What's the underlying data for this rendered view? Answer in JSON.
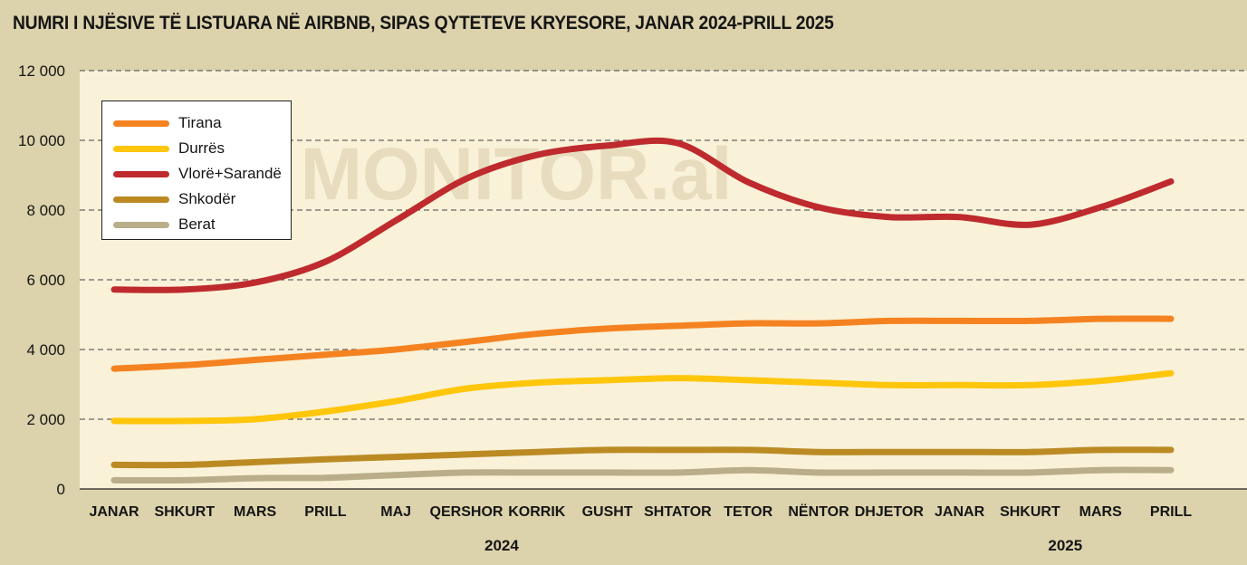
{
  "title": "NUMRI I NJËSIVE TË LISTUARA NË AIRBNB, SIPAS QYTETEVE KRYESORE, JANAR 2024-PRILL 2025",
  "watermark": "MONITOR.al",
  "chart_data": {
    "type": "line",
    "title": "NUMRI I NJËSIVE TË LISTUARA NË AIRBNB, SIPAS QYTETEVE KRYESORE, JANAR 2024-PRILL 2025",
    "xlabel": "",
    "ylabel": "",
    "categories": [
      "JANAR",
      "SHKURT",
      "MARS",
      "PRILL",
      "MAJ",
      "QERSHOR",
      "KORRIK",
      "GUSHT",
      "SHTATOR",
      "TETOR",
      "NËNTOR",
      "DHJETOR",
      "JANAR",
      "SHKURT",
      "MARS",
      "PRILL"
    ],
    "year_labels": [
      {
        "label": "2024",
        "category_index": 5.5
      },
      {
        "label": "2025",
        "category_index": 13.5
      }
    ],
    "ylim": [
      0,
      12000
    ],
    "yticks": [
      0,
      2000,
      4000,
      6000,
      8000,
      10000,
      12000
    ],
    "ytick_labels": [
      "0",
      "2 000",
      "4 000",
      "6 000",
      "8 000",
      "10 000",
      "12 000"
    ],
    "grid": true,
    "legend_position": "top-left",
    "series": [
      {
        "name": "Tirana",
        "color": "#f58220",
        "values": [
          3450,
          3550,
          3700,
          3850,
          4000,
          4220,
          4450,
          4600,
          4680,
          4750,
          4750,
          4820,
          4820,
          4820,
          4880,
          4880
        ]
      },
      {
        "name": "Durrës",
        "color": "#ffc60b",
        "values": [
          1950,
          1950,
          2000,
          2220,
          2520,
          2880,
          3050,
          3120,
          3180,
          3120,
          3050,
          2980,
          2980,
          2980,
          3100,
          3320
        ]
      },
      {
        "name": "Vlorë+Sarandë",
        "color": "#be2a2d",
        "values": [
          5720,
          5720,
          5920,
          6520,
          7700,
          8900,
          9580,
          9850,
          9920,
          8800,
          8080,
          7800,
          7800,
          7580,
          8080,
          8820
        ]
      },
      {
        "name": "Shkodër",
        "color": "#bb8a23",
        "values": [
          690,
          690,
          770,
          850,
          920,
          990,
          1060,
          1120,
          1120,
          1120,
          1060,
          1060,
          1060,
          1060,
          1120,
          1120
        ]
      },
      {
        "name": "Berat",
        "color": "#b9ae89",
        "values": [
          250,
          250,
          310,
          320,
          400,
          470,
          470,
          470,
          470,
          540,
          470,
          470,
          470,
          470,
          540,
          540
        ]
      }
    ]
  }
}
